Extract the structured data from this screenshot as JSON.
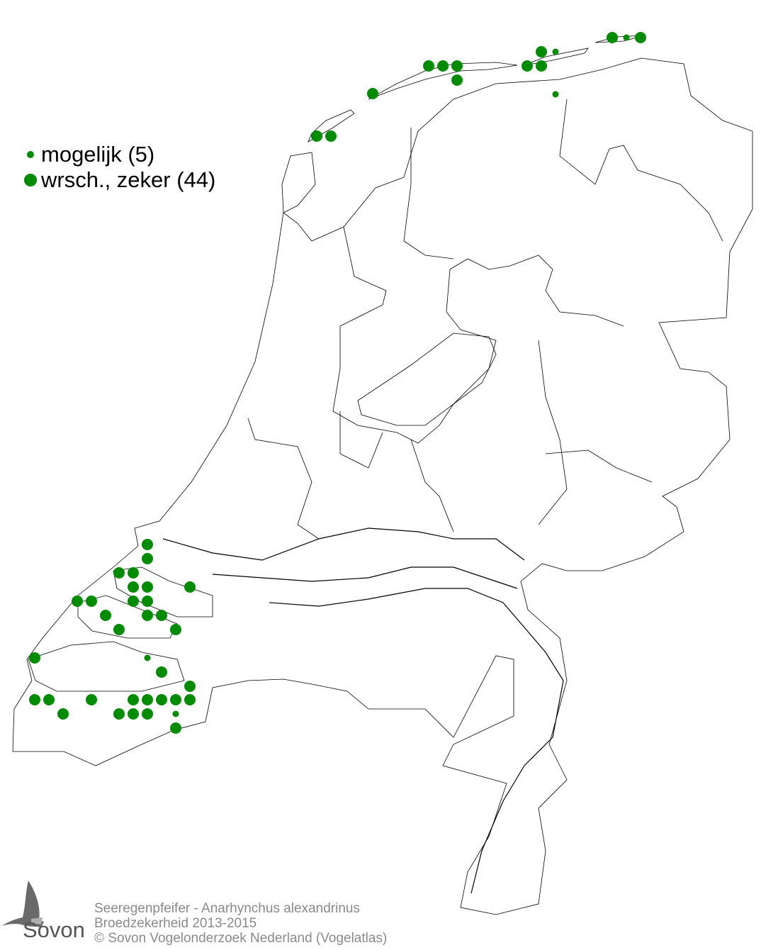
{
  "legend": {
    "items": [
      {
        "label": "mogelijk (5)",
        "size": "small"
      },
      {
        "label": "wrsch., zeker (44)",
        "size": "large"
      }
    ]
  },
  "colors": {
    "dot": "#008c00",
    "outline": "#000000",
    "footer_text": "#8a8a8a"
  },
  "footer": {
    "species": "Seeregenpfeifer - Anarhynchus alexandrinus",
    "subtitle": "Broedzekerheid 2013-2015",
    "copyright": "© Sovon Vogelonderzoek Nederland (Vogelatlas)"
  },
  "logo": {
    "text": "Sovon"
  }
}
